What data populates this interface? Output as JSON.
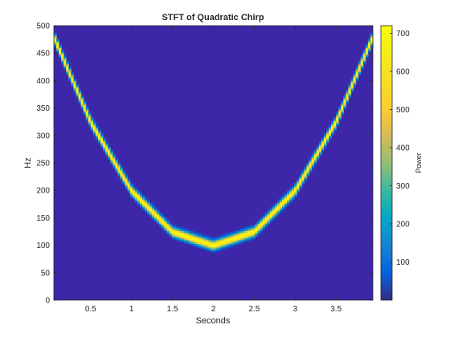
{
  "chart_data": {
    "type": "heatmap",
    "title": "STFT of Quadratic Chirp",
    "xlabel": "Seconds",
    "ylabel": "Hz",
    "xlim": [
      0.05,
      3.95
    ],
    "ylim": [
      0,
      500
    ],
    "x_ticks": [
      "0.5",
      "1",
      "1.5",
      "2",
      "2.5",
      "3",
      "3.5"
    ],
    "y_ticks": [
      "0",
      "50",
      "100",
      "150",
      "200",
      "250",
      "300",
      "350",
      "400",
      "450",
      "500"
    ],
    "colorbar": {
      "label": "Power",
      "range": [
        0,
        720
      ],
      "ticks": [
        "100",
        "200",
        "300",
        "400",
        "500",
        "600",
        "700"
      ],
      "colormap": "parula"
    },
    "ridge": {
      "description_formula": "f(t) = 100 + 100*(t-2)^2",
      "points": [
        {
          "t": 0.05,
          "hz": 480
        },
        {
          "t": 0.5,
          "hz": 325
        },
        {
          "t": 1.0,
          "hz": 200
        },
        {
          "t": 1.5,
          "hz": 125
        },
        {
          "t": 2.0,
          "hz": 100
        },
        {
          "t": 2.5,
          "hz": 125
        },
        {
          "t": 3.0,
          "hz": 200
        },
        {
          "t": 3.5,
          "hz": 325
        },
        {
          "t": 3.95,
          "hz": 480
        }
      ],
      "peak_power": 720,
      "background_power": 0
    }
  },
  "colors": {
    "background": "#3e26a8",
    "peak": "#f9fb0e"
  }
}
